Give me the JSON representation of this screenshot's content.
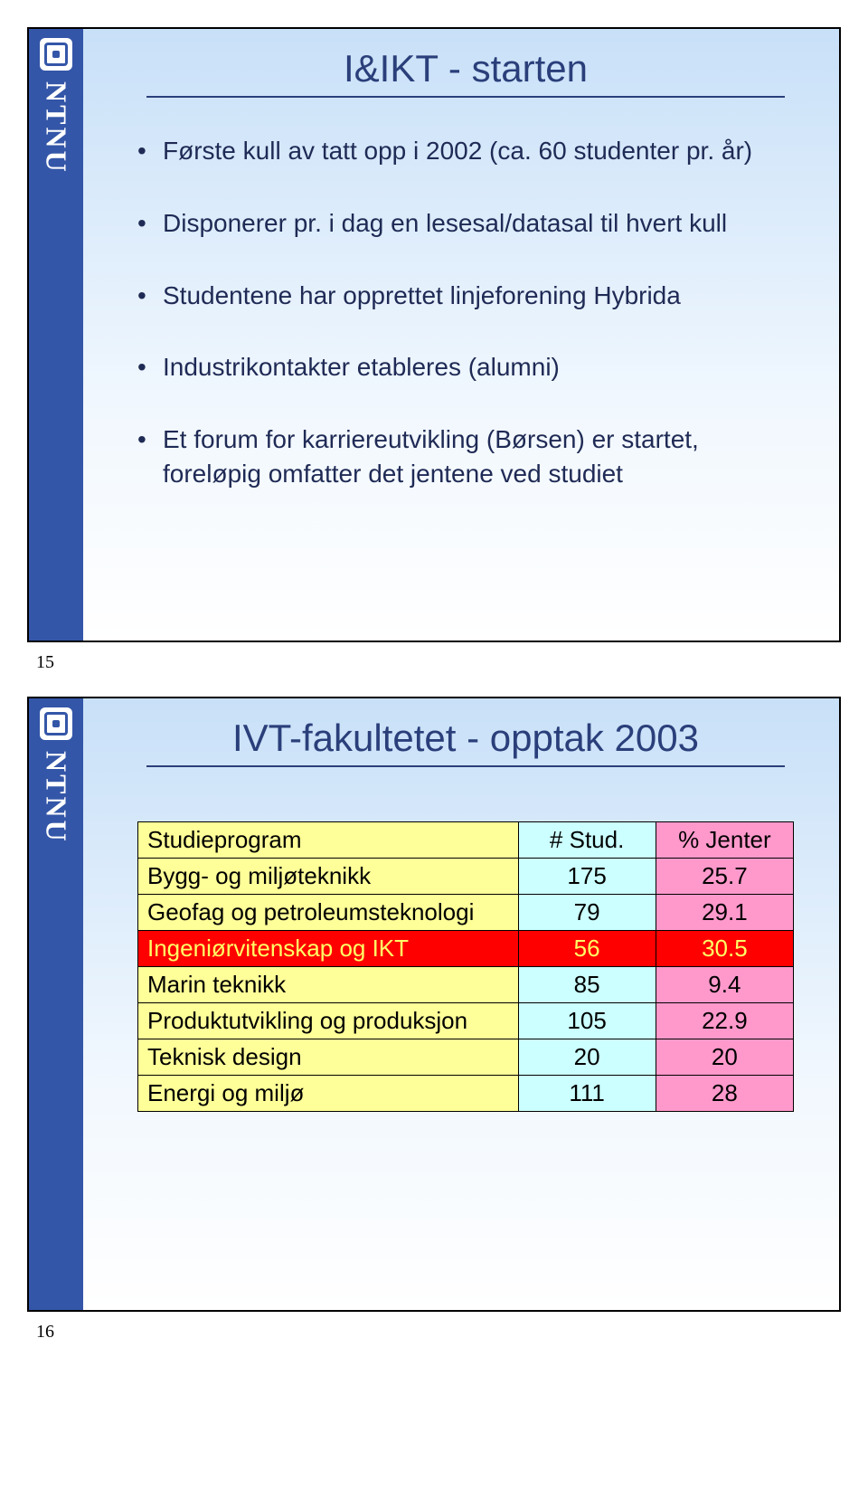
{
  "ntnu_label": "NTNU",
  "slide1": {
    "title": "I&IKT - starten",
    "bullets": [
      "Første kull av tatt opp i 2002 (ca. 60 studenter pr. år)",
      "Disponerer pr. i dag en lesesal/datasal til hvert kull",
      "Studentene har opprettet linjeforening Hybrida",
      "Industrikontakter etableres (alumni)",
      "Et forum for karriereutvikling (Børsen) er startet, foreløpig omfatter det jentene ved studiet"
    ],
    "page_num": "15"
  },
  "slide2": {
    "title": "IVT-fakultetet - opptak 2003",
    "page_num": "16",
    "table": {
      "header": {
        "program": "Studieprogram",
        "stud": "# Stud.",
        "jenter": "% Jenter",
        "bg_program": "#ffff99",
        "bg_stud": "#ccffff",
        "bg_jenter": "#ff99cc"
      },
      "rows": [
        {
          "label": "Bygg- og miljøteknikk",
          "stud": "175",
          "pct": "25.7",
          "bg_label": "#ffff99",
          "bg_stud": "#ccffff",
          "bg_pct": "#ff99cc"
        },
        {
          "label": "Geofag og petroleumsteknologi",
          "stud": "79",
          "pct": "29.1",
          "bg_label": "#ffff99",
          "bg_stud": "#ccffff",
          "bg_pct": "#ff99cc"
        },
        {
          "label": "Ingeniørvitenskap og IKT",
          "stud": "56",
          "pct": "30.5",
          "bg_label": "#ff0000",
          "bg_stud": "#ff0000",
          "bg_pct": "#ff0000",
          "text_color": "#ffff66"
        },
        {
          "label": "Marin teknikk",
          "stud": "85",
          "pct": "9.4",
          "bg_label": "#ffff99",
          "bg_stud": "#ccffff",
          "bg_pct": "#ff99cc"
        },
        {
          "label": "Produktutvikling og produksjon",
          "stud": "105",
          "pct": "22.9",
          "bg_label": "#ffff99",
          "bg_stud": "#ccffff",
          "bg_pct": "#ff99cc"
        },
        {
          "label": "Teknisk design",
          "stud": "20",
          "pct": "20",
          "bg_label": "#ffff99",
          "bg_stud": "#ccffff",
          "bg_pct": "#ff99cc"
        },
        {
          "label": "Energi og miljø",
          "stud": "111",
          "pct": "28",
          "bg_label": "#ffff99",
          "bg_stud": "#ccffff",
          "bg_pct": "#ff99cc"
        }
      ]
    }
  }
}
